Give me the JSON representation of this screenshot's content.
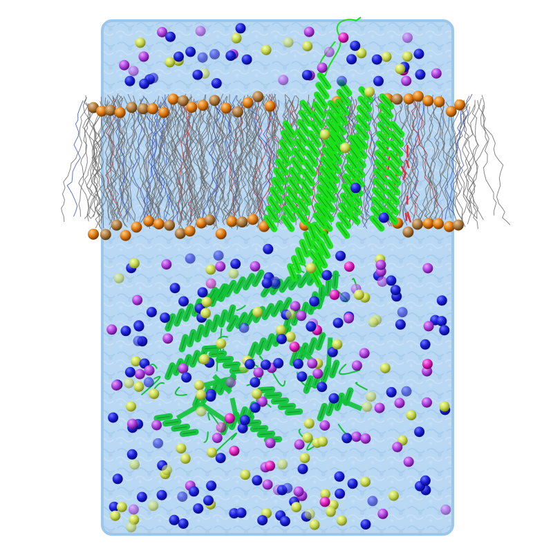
{
  "scene": {
    "background": "#ffffff",
    "water_color": "#b7d7f2",
    "water_edge_color": "#9cc6ea",
    "lipid_tail_color": "#6e6e6e",
    "lipid_head_color": "#e07b12",
    "lipid_headgroup_accent": "#3b5ccc",
    "protein_tm_color": "#18e018",
    "protein_soluble_color": "#12c23a",
    "ligand_color": "#e0303a"
  },
  "ions": {
    "colors": {
      "sodium": "#1a1fd6",
      "chloride": "#c8d850",
      "magnesium": "#b040e0",
      "calcium": "#e020c0"
    },
    "seed": 42
  }
}
